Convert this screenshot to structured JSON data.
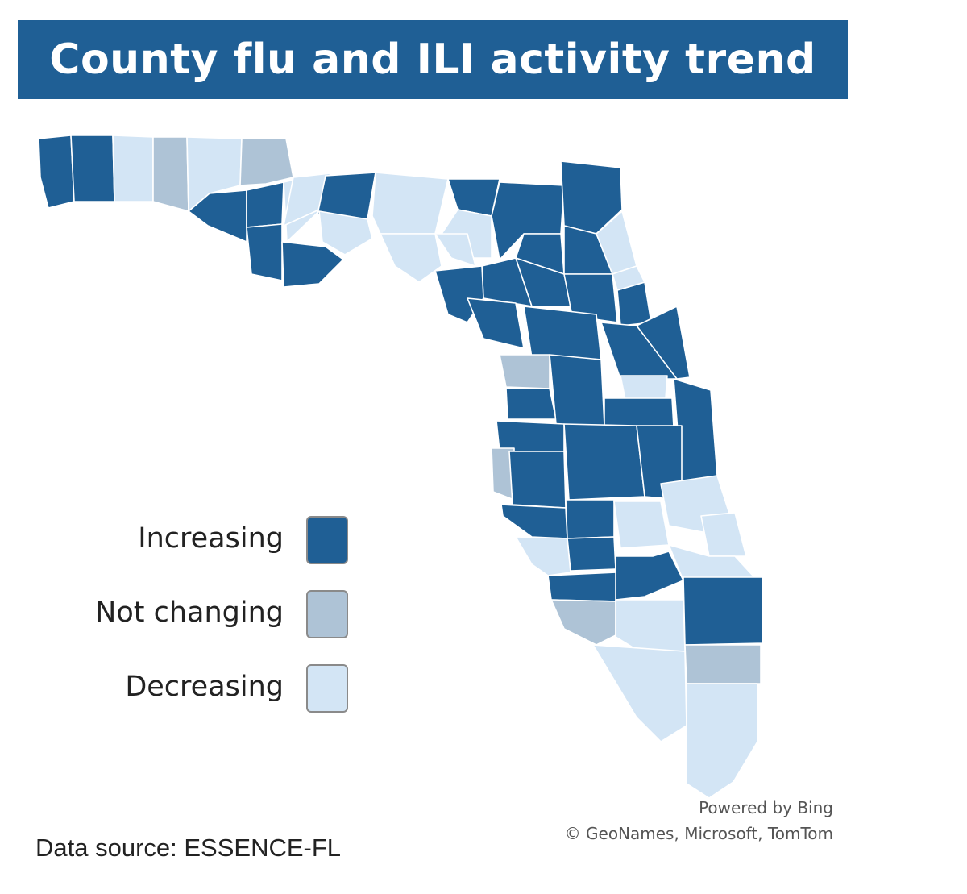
{
  "title": "County flu and ILI activity trend",
  "legend": {
    "items": [
      {
        "label": "Increasing",
        "key": "increasing",
        "color": "#1f5f95"
      },
      {
        "label": "Not changing",
        "key": "not_changing",
        "color": "#aec3d6"
      },
      {
        "label": "Decreasing",
        "key": "decreasing",
        "color": "#d3e5f5"
      }
    ]
  },
  "colors": {
    "increasing": "#1f5f95",
    "not_changing": "#aec3d6",
    "decreasing": "#d3e5f5",
    "title_bar": "#1f5f95",
    "border": "#ffffff"
  },
  "map": {
    "region": "Florida",
    "unit": "county",
    "palette_counts": {
      "increasing": "majority",
      "not_changing": "few",
      "decreasing": "many"
    }
  },
  "attribution": {
    "line1": "Powered by Bing",
    "line2": "© GeoNames, Microsoft, TomTom"
  },
  "data_source": "Data source: ESSENCE-FL"
}
